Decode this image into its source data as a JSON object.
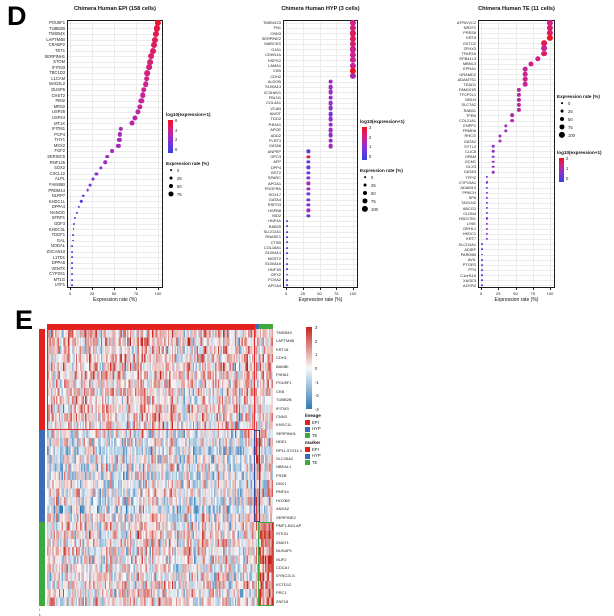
{
  "figure_labels": {
    "d": "D",
    "e": "E"
  },
  "colors": {
    "dot_scale": [
      "#3742e0",
      "#7c33da",
      "#cb2391",
      "#f2121f"
    ],
    "heat_pos": "#c7231c",
    "heat_neg": "#2e7ab9",
    "heat_mid": "#f9f9f9",
    "epi": "#e3211c",
    "hyp": "#3c6cb4",
    "te": "#3faa3c",
    "box_red": "#e8262c",
    "box_blue": "#33479e",
    "box_green": "#3faa3c"
  },
  "chart_data": {
    "dotplots": [
      {
        "type": "scatter",
        "title": "Chimera Human EPI (158 cells)",
        "xlabel": "Expression rate (%)",
        "xticks": [
          0,
          25,
          50,
          75,
          100
        ],
        "xlim": [
          0,
          100
        ],
        "color_legend": {
          "title": "log10(expression+1)",
          "ticks": [
            6,
            4,
            2,
            0
          ],
          "max": 6
        },
        "size_legend": {
          "title": "Expression rate (%)",
          "entries": [
            0,
            25,
            50,
            75
          ]
        },
        "legend_order": "color_size",
        "genes": [
          [
            "POU5F1",
            100,
            5.8
          ],
          [
            "TUBB2B",
            99,
            5.3
          ],
          [
            "TMSB4X",
            98,
            5.1
          ],
          [
            "LAPTM4B",
            97,
            5.0
          ],
          [
            "CRABP2",
            96,
            4.9
          ],
          [
            "TET1",
            94,
            4.7
          ],
          [
            "SERPINH1",
            92,
            4.6
          ],
          [
            "STOM",
            91,
            4.5
          ],
          [
            "IFITM3",
            90,
            4.4
          ],
          [
            "TBC1D3",
            88,
            4.3
          ],
          [
            "L1CAM",
            87,
            4.2
          ],
          [
            "MAD2L2",
            86,
            4.1
          ],
          [
            "DUSP6",
            84,
            4.0
          ],
          [
            "CHST2",
            83,
            3.9
          ],
          [
            "PIM2",
            81,
            3.8
          ],
          [
            "MRS2",
            79,
            3.7
          ],
          [
            "USP28",
            77,
            3.6
          ],
          [
            "USP44",
            74,
            3.5
          ],
          [
            "MT1X",
            71,
            3.4
          ],
          [
            "IFITM1",
            58,
            3.2
          ],
          [
            "PCP4",
            57,
            3.1
          ],
          [
            "THY1",
            56,
            3.0
          ],
          [
            "MSX2",
            55,
            3.0
          ],
          [
            "FGF2",
            48,
            2.9
          ],
          [
            "SERINC5",
            42,
            2.8
          ],
          [
            "RNF125",
            40,
            2.7
          ],
          [
            "SOX2",
            35,
            2.6
          ],
          [
            "CXCL12",
            30,
            2.3
          ],
          [
            "ALPL",
            26,
            2.1
          ],
          [
            "FAM46B",
            23,
            1.9
          ],
          [
            "PRDM14",
            20,
            1.7
          ],
          [
            "NLRP7",
            15,
            1.4
          ],
          [
            "KHDC1L",
            13,
            1.2
          ],
          [
            "DPPA4",
            10,
            1.0
          ],
          [
            "NANOG",
            8,
            0.9
          ],
          [
            "SFRP1",
            6,
            0.8
          ],
          [
            "GDF3",
            5,
            0.7
          ],
          [
            "KHDC3L",
            4,
            0.6
          ],
          [
            "TDGF1",
            3,
            0.5
          ],
          [
            "GAL",
            3,
            0.5
          ],
          [
            "NODAL",
            2,
            0.4
          ],
          [
            "ZSCAN10",
            2,
            0.4
          ],
          [
            "L1TD1",
            2,
            0.3
          ],
          [
            "DPPA5",
            2,
            0.3
          ],
          [
            "VENTX",
            2,
            0.2
          ],
          [
            "CYP2S1",
            2,
            0.2
          ],
          [
            "MT1G",
            2,
            0.1
          ],
          [
            "UTF1",
            2,
            0.1
          ]
        ]
      },
      {
        "type": "scatter",
        "title": "Chimera Human HYP (3 cells)",
        "xlabel": "Expression rate (%)",
        "xticks": [
          0,
          25,
          50,
          75,
          100
        ],
        "xlim": [
          0,
          100
        ],
        "color_legend": {
          "title": "log10(expression+1)",
          "ticks": [
            3,
            2,
            1,
            0
          ],
          "max": 3
        },
        "size_legend": {
          "title": "Expression rate (%)",
          "entries": [
            0,
            25,
            50,
            75,
            100
          ]
        },
        "legend_order": "color_size",
        "genes": [
          [
            "TMEM123",
            100,
            2.1
          ],
          [
            "FN1",
            100,
            2.2
          ],
          [
            "CNN3",
            100,
            2.4
          ],
          [
            "SERPINE2",
            100,
            2.5
          ],
          [
            "MARCKS",
            100,
            2.3
          ],
          [
            "GJA1",
            100,
            2.1
          ],
          [
            "CDKN1A",
            100,
            2.0
          ],
          [
            "HSPG2",
            100,
            2.0
          ],
          [
            "LAMA1",
            100,
            1.9
          ],
          [
            "CKB",
            100,
            3.0
          ],
          [
            "CDH2",
            100,
            1.6
          ],
          [
            "ALDOB",
            66.7,
            1.5
          ],
          [
            "S100A13",
            66.7,
            1.4
          ],
          [
            "ZC3HAV1",
            66.7,
            1.4
          ],
          [
            "FBLN1",
            66.7,
            1.3
          ],
          [
            "COL4A1",
            66.7,
            1.3
          ],
          [
            "VCAN",
            66.7,
            1.2
          ],
          [
            "AMOT",
            66.7,
            0.8
          ],
          [
            "TDO2",
            66.7,
            1.2
          ],
          [
            "P4HA1",
            66.7,
            1.3
          ],
          [
            "APOE",
            66.7,
            1.4
          ],
          [
            "ADD2",
            66.7,
            1.2
          ],
          [
            "FLRT3",
            66.7,
            1.3
          ],
          [
            "GATA6",
            66.7,
            1.5
          ],
          [
            "ANPEP",
            33.3,
            0.6
          ],
          [
            "GPC3",
            33.3,
            2.6
          ],
          [
            "AFP",
            33.3,
            0.6
          ],
          [
            "DPP4",
            33.3,
            0.7
          ],
          [
            "BST2",
            33.3,
            1.0
          ],
          [
            "SPARC",
            33.3,
            1.1
          ],
          [
            "APOA1",
            33.3,
            1.6
          ],
          [
            "PDGFRA",
            33.3,
            1.4
          ],
          [
            "SOX17",
            33.3,
            0.8
          ],
          [
            "GATA4",
            33.3,
            1.0
          ],
          [
            "RSPO3",
            33.3,
            1.1
          ],
          [
            "HSPB8",
            33.3,
            1.5
          ],
          [
            "NID2",
            33.3,
            0.6
          ],
          [
            "HNF4A",
            2,
            0.2
          ],
          [
            "RAB25",
            2,
            0.2
          ],
          [
            "SLCO2A1",
            2,
            0.2
          ],
          [
            "RNASE1",
            2,
            0.1
          ],
          [
            "CTSB",
            2,
            0.1
          ],
          [
            "COL18A1",
            2,
            0.1
          ],
          [
            "S100A14",
            2,
            0.1
          ],
          [
            "MGST2",
            2,
            0.1
          ],
          [
            "S100A16",
            2,
            0.1
          ],
          [
            "HNF1B",
            2,
            0.1
          ],
          [
            "GPX2",
            2,
            0.1
          ],
          [
            "FOXA2",
            2,
            0.1
          ],
          [
            "APOA4",
            2,
            0.1
          ]
        ]
      },
      {
        "type": "scatter",
        "title": "Chimera Human TE (11 cells)",
        "xlabel": "Expression rate (%)",
        "xticks": [
          0,
          25,
          50,
          75,
          100
        ],
        "xlim": [
          0,
          100
        ],
        "color_legend": {
          "title": "log10(expression+1)",
          "ticks": [
            2,
            1,
            0
          ],
          "max": 2
        },
        "size_legend": {
          "title": "Expression rate (%)",
          "entries": [
            0,
            25,
            50,
            75,
            100
          ]
        },
        "legend_order": "size_color",
        "genes": [
          [
            "ATP6V1C2",
            100,
            1.4
          ],
          [
            "NR2F2",
            100,
            1.5
          ],
          [
            "PRSS8",
            100,
            1.6
          ],
          [
            "KRT8",
            100,
            2.0
          ],
          [
            "GSTO2",
            91,
            1.7
          ],
          [
            "ZFHX3",
            91,
            1.3
          ],
          [
            "TFAP2A",
            91,
            1.6
          ],
          [
            "EPB41L3",
            82,
            1.4
          ],
          [
            "MBNL3",
            73,
            1.4
          ],
          [
            "EPHA1",
            64,
            1.3
          ],
          [
            "GRAMD2",
            64,
            1.3
          ],
          [
            "ADAMTS1",
            64,
            1.4
          ],
          [
            "TEAD1",
            64,
            1.3
          ],
          [
            "FAM101B",
            55,
            1.2
          ],
          [
            "TFCP2L1",
            55,
            1.2
          ],
          [
            "MSLN",
            55,
            1.2
          ],
          [
            "SLC7A2",
            55,
            1.3
          ],
          [
            "RAB31",
            55,
            1.2
          ],
          [
            "TFEB",
            45,
            1.1
          ],
          [
            "COL21A1",
            45,
            1.2
          ],
          [
            "ENPP1",
            36,
            1.0
          ],
          [
            "FRMD6",
            36,
            0.9
          ],
          [
            "RHCG",
            27,
            0.9
          ],
          [
            "GATA2",
            27,
            1.0
          ],
          [
            "SYTL2",
            18,
            0.8
          ],
          [
            "CLIC6",
            18,
            0.9
          ],
          [
            "GPAM",
            18,
            0.8
          ],
          [
            "GCM1",
            18,
            0.9
          ],
          [
            "DLX3",
            18,
            0.8
          ],
          [
            "GATA3",
            18,
            0.9
          ],
          [
            "TFPI2",
            9,
            0.6
          ],
          [
            "CYP19A1",
            9,
            0.8
          ],
          [
            "ADAM19",
            9,
            0.7
          ],
          [
            "PRKCH",
            9,
            0.7
          ],
          [
            "SP6",
            9,
            0.6
          ],
          [
            "TAGLN2",
            9,
            0.5
          ],
          [
            "ABCG2",
            9,
            0.5
          ],
          [
            "CLDN4",
            9,
            0.7
          ],
          [
            "HSD17B1",
            9,
            0.8
          ],
          [
            "LY6E",
            9,
            0.7
          ],
          [
            "GRHL1",
            9,
            0.8
          ],
          [
            "HKDC1",
            9,
            0.7
          ],
          [
            "KRT7",
            9,
            0.8
          ],
          [
            "SLCO4A1",
            2,
            0.1
          ],
          [
            "ADIRF",
            2,
            0.1
          ],
          [
            "PARD6B",
            2,
            0.1
          ],
          [
            "AVIL",
            2,
            0.1
          ],
          [
            "PTGES",
            2,
            0.1
          ],
          [
            "PTN",
            2,
            0.1
          ],
          [
            "C1orf116",
            2,
            0.1
          ],
          [
            "XAGE3",
            2,
            0.1
          ],
          [
            "ACKR2",
            2,
            0.1
          ]
        ]
      }
    ],
    "heatmap": {
      "type": "heatmap",
      "col_groups": [
        {
          "name": "EPI",
          "n": 158
        },
        {
          "name": "HYP",
          "n": 3
        },
        {
          "name": "TE",
          "n": 11
        }
      ],
      "row_groups": [
        {
          "name": "EPI",
          "rows": [
            [
              "TMSB4X",
              0.3
            ],
            [
              "LAPTM4B",
              0.2
            ],
            [
              "KRT18",
              0.1
            ],
            [
              "CDH1",
              0.2
            ],
            [
              "BAMBI",
              0.1
            ],
            [
              "P4HA1",
              0.2
            ],
            [
              "POU5F1",
              0.3
            ],
            [
              "CKB",
              0.1
            ],
            [
              "TUBB2B",
              0.0
            ],
            [
              "IFITM3",
              0.1
            ],
            [
              "CNN3",
              0.2
            ],
            [
              "KHDC1L",
              0.0
            ]
          ]
        },
        {
          "name": "HYP",
          "rows": [
            [
              "SERPINH1",
              -0.1
            ],
            [
              "NDE1",
              -0.2
            ],
            [
              "RP11-57G11.1",
              -0.7
            ],
            [
              "SLC26A2",
              -0.3
            ],
            [
              "NBEAL1",
              -0.2
            ],
            [
              "FRZB",
              -0.3
            ],
            [
              "DKK1",
              -0.2
            ],
            [
              "RNF44",
              0.0
            ],
            [
              "HOXB8",
              -0.1
            ],
            [
              "ANXA2",
              -0.8
            ],
            [
              "SERPINE2",
              0.0
            ]
          ]
        },
        {
          "name": "TE",
          "rows": [
            [
              "PMF1-BGLAP",
              0.1
            ],
            [
              "STK31",
              0.2
            ],
            [
              "ZMAT1",
              0.1
            ],
            [
              "NUSAP1",
              0.2
            ],
            [
              "NUF2",
              0.1
            ],
            [
              "CDCA7",
              0.2
            ],
            [
              "DYNC2LI1",
              0.1
            ],
            [
              "KCTD12",
              0.2
            ],
            [
              "PRC1",
              0.1
            ],
            [
              "ZNF18",
              0.2
            ]
          ]
        }
      ],
      "colorbar_ticks": [
        3,
        2,
        1,
        0,
        -1,
        -2,
        -3
      ],
      "legends": [
        {
          "title": "lineage",
          "entries": [
            "EPI",
            "HYP",
            "TE"
          ]
        },
        {
          "title": "marker",
          "entries": [
            "EPI",
            "HYP",
            "TE"
          ]
        }
      ],
      "footer_marks": [
        "i",
        "L"
      ]
    }
  }
}
